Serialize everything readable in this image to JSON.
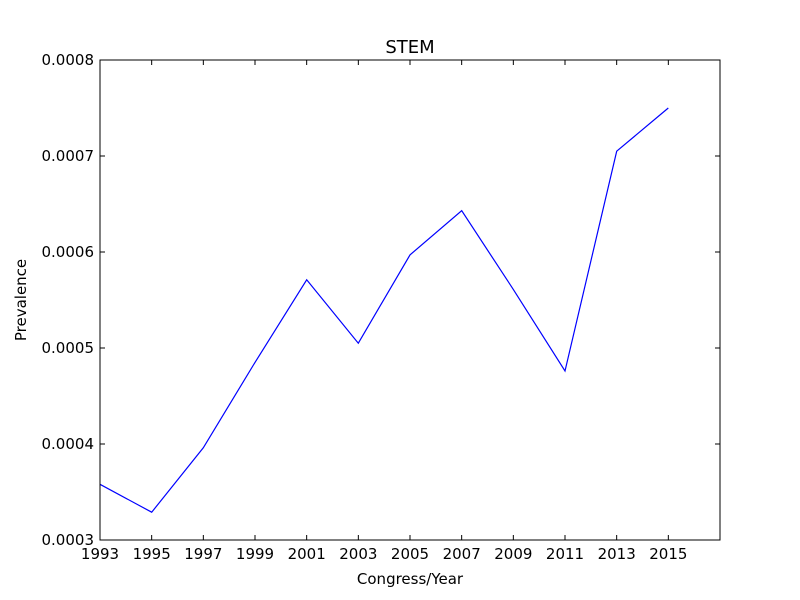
{
  "chart_data": {
    "type": "line",
    "title": "STEM",
    "xlabel": "Congress/Year",
    "ylabel": "Prevalence",
    "xlim": [
      1993,
      2017
    ],
    "ylim": [
      0.0003,
      0.0008
    ],
    "x_ticks": [
      1993,
      1995,
      1997,
      1999,
      2001,
      2003,
      2005,
      2007,
      2009,
      2011,
      2013,
      2015
    ],
    "x_tick_labels": [
      "1993",
      "1995",
      "1997",
      "1999",
      "2001",
      "2003",
      "2005",
      "2007",
      "2009",
      "2011",
      "2013",
      "2015"
    ],
    "y_ticks": [
      0.0003,
      0.0004,
      0.0005,
      0.0006,
      0.0007,
      0.0008
    ],
    "y_tick_labels": [
      "0.0003",
      "0.0004",
      "0.0005",
      "0.0006",
      "0.0007",
      "0.0008"
    ],
    "grid": false,
    "legend": "none",
    "series": [
      {
        "color": "#0000ff",
        "x": [
          1993,
          1995,
          1997,
          1999,
          2001,
          2003,
          2005,
          2007,
          2009,
          2011,
          2013,
          2015
        ],
        "y": [
          0.000358,
          0.000329,
          0.000396,
          0.000485,
          0.000571,
          0.000505,
          0.000597,
          0.000643,
          0.000561,
          0.000476,
          0.000705,
          0.00075
        ]
      }
    ]
  }
}
